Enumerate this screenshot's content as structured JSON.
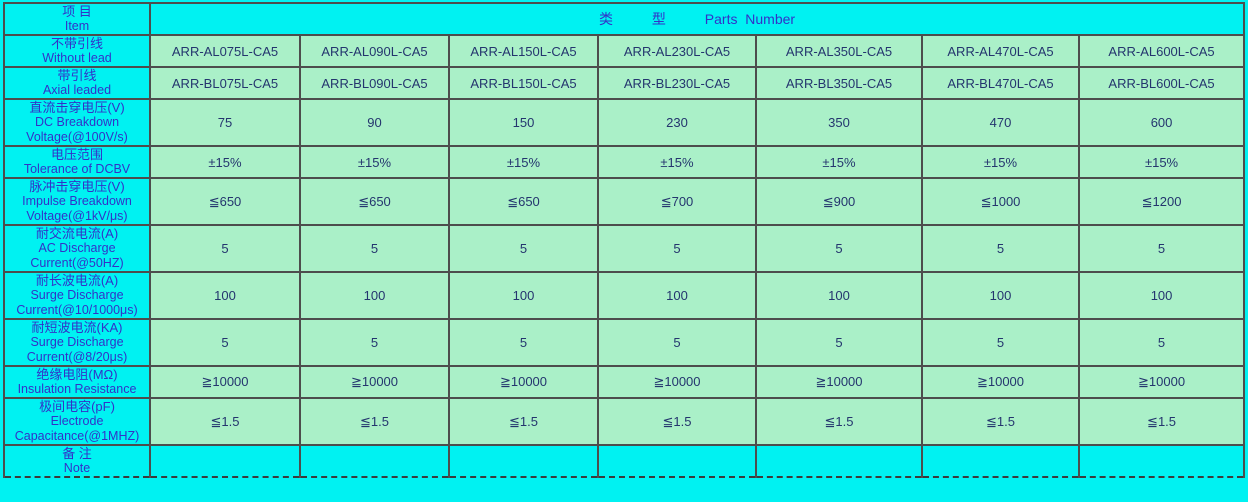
{
  "colors": {
    "page_bg": "#00f2f2",
    "cyan_cell": "#00f2f2",
    "green_cell": "#aaf0c8",
    "border": "#4d4d4d",
    "label_text": "#3232c8",
    "data_text": "#24356e"
  },
  "table": {
    "corner": {
      "zh": "项 目",
      "en": "Item"
    },
    "parts_header": {
      "text": "类          型          Parts  Number"
    },
    "rows": [
      {
        "id": "without-lead",
        "bg": "green",
        "label_lines": [
          "不带引线",
          "Without lead"
        ],
        "values": [
          "ARR-AL075L-CA5",
          "ARR-AL090L-CA5",
          "ARR-AL150L-CA5",
          "ARR-AL230L-CA5",
          "ARR-AL350L-CA5",
          "ARR-AL470L-CA5",
          "ARR-AL600L-CA5"
        ]
      },
      {
        "id": "axial-leaded",
        "bg": "green",
        "label_lines": [
          "带引线",
          "Axial leaded"
        ],
        "values": [
          "ARR-BL075L-CA5",
          "ARR-BL090L-CA5",
          "ARR-BL150L-CA5",
          "ARR-BL230L-CA5",
          "ARR-BL350L-CA5",
          "ARR-BL470L-CA5",
          "ARR-BL600L-CA5"
        ]
      },
      {
        "id": "dc-breakdown-voltage",
        "bg": "green",
        "label_lines": [
          "直流击穿电压(V)",
          "DC Breakdown",
          "Voltage(@100V/s)"
        ],
        "values": [
          "75",
          "90",
          "150",
          "230",
          "350",
          "470",
          "600"
        ]
      },
      {
        "id": "tolerance-of-dcbv",
        "bg": "green",
        "label_lines": [
          "电压范围",
          "Tolerance of DCBV"
        ],
        "values": [
          "±15%",
          "±15%",
          "±15%",
          "±15%",
          "±15%",
          "±15%",
          "±15%"
        ]
      },
      {
        "id": "impulse-breakdown-voltage",
        "bg": "green",
        "label_lines": [
          "脉冲击穿电压(V)",
          "Impulse Breakdown",
          "Voltage(@1kV/μs)"
        ],
        "values": [
          "≦650",
          "≦650",
          "≦650",
          "≦700",
          "≦900",
          "≦1000",
          "≦1200"
        ]
      },
      {
        "id": "ac-discharge-current",
        "bg": "green",
        "label_lines": [
          "耐交流电流(A)",
          "AC Discharge",
          "Current(@50HZ)"
        ],
        "values": [
          "5",
          "5",
          "5",
          "5",
          "5",
          "5",
          "5"
        ]
      },
      {
        "id": "surge-discharge-current-long",
        "bg": "green",
        "label_lines": [
          "耐长波电流(A)",
          "Surge Discharge",
          "Current(@10/1000μs)"
        ],
        "values": [
          "100",
          "100",
          "100",
          "100",
          "100",
          "100",
          "100"
        ]
      },
      {
        "id": "surge-discharge-current-short",
        "bg": "green",
        "label_lines": [
          "耐短波电流(KA)",
          "Surge Discharge",
          "Current(@8/20μs)"
        ],
        "values": [
          "5",
          "5",
          "5",
          "5",
          "5",
          "5",
          "5"
        ]
      },
      {
        "id": "insulation-resistance",
        "bg": "green",
        "label_lines": [
          "绝缘电阻(MΩ)",
          "Insulation Resistance"
        ],
        "values": [
          "≧10000",
          "≧10000",
          "≧10000",
          "≧10000",
          "≧10000",
          "≧10000",
          "≧10000"
        ]
      },
      {
        "id": "electrode-capacitance",
        "bg": "green",
        "label_lines": [
          "极间电容(pF)",
          "Electrode",
          "Capacitance(@1MHZ)"
        ],
        "values": [
          "≦1.5",
          "≦1.5",
          "≦1.5",
          "≦1.5",
          "≦1.5",
          "≦1.5",
          "≦1.5"
        ]
      },
      {
        "id": "note",
        "bg": "cyan",
        "label_lines": [
          "备 注",
          "Note"
        ],
        "values": [
          "",
          "",
          "",
          "",
          "",
          "",
          ""
        ]
      }
    ]
  }
}
